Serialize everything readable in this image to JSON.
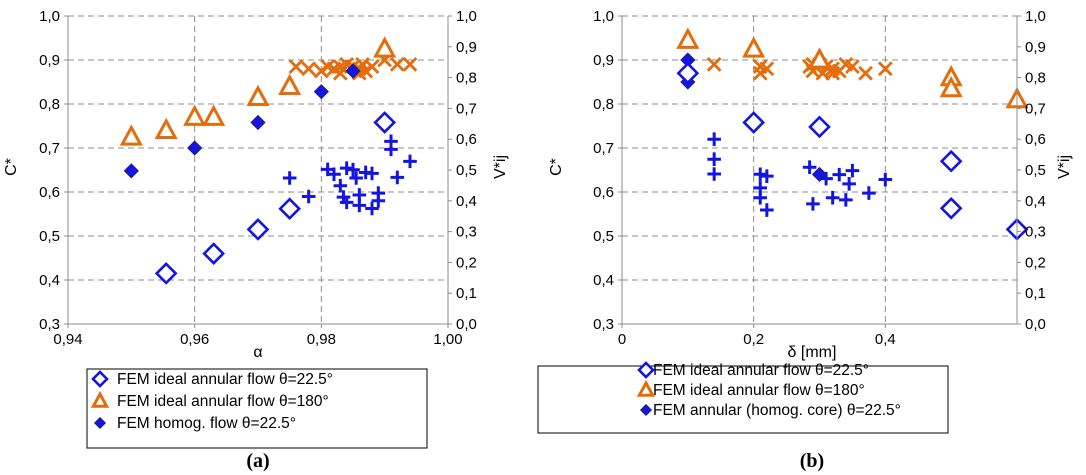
{
  "colors": {
    "blue": "#1515E0",
    "orange": "#E46C0A",
    "grid": "#8c8c8c",
    "axis": "#8c8c8c"
  },
  "chart_data": [
    {
      "panel_label": "(a)",
      "type": "scatter",
      "xlabel": "α",
      "ylabel": "C*",
      "y2label": "V*ij",
      "xlim": [
        0.94,
        1.0
      ],
      "ylim": [
        0.3,
        1.0
      ],
      "y2lim": [
        0.0,
        1.0
      ],
      "x_ticks": [
        0.94,
        0.96,
        0.98,
        1.0
      ],
      "x_tick_labels": [
        "0,94",
        "0,96",
        "0,98",
        "1,00"
      ],
      "y_ticks": [
        0.3,
        0.4,
        0.5,
        0.6,
        0.7,
        0.8,
        0.9,
        1.0
      ],
      "y_tick_labels": [
        "0,3",
        "0,4",
        "0,5",
        "0,6",
        "0,7",
        "0,8",
        "0,9",
        "1,0"
      ],
      "y2_ticks": [
        0.0,
        0.1,
        0.2,
        0.3,
        0.4,
        0.5,
        0.6,
        0.7,
        0.8,
        0.9,
        1.0
      ],
      "y2_tick_labels": [
        "0,0",
        "0,1",
        "0,2",
        "0,3",
        "0,4",
        "0,5",
        "0,6",
        "0,7",
        "0,8",
        "0,9",
        "1,0"
      ],
      "grid": true,
      "legend_position": "bottom",
      "series": [
        {
          "name": "FEM ideal annular flow θ=22.5°",
          "marker": "open-diamond",
          "color": "#1515E0",
          "axis": "left",
          "points": [
            [
              0.9555,
              0.415
            ],
            [
              0.963,
              0.46
            ],
            [
              0.97,
              0.515
            ],
            [
              0.975,
              0.562
            ],
            [
              0.99,
              0.758
            ]
          ]
        },
        {
          "name": "FEM ideal annular flow θ=180°",
          "marker": "open-triangle",
          "color": "#E46C0A",
          "axis": "left",
          "points": [
            [
              0.95,
              0.725
            ],
            [
              0.9555,
              0.74
            ],
            [
              0.96,
              0.77
            ],
            [
              0.963,
              0.77
            ],
            [
              0.97,
              0.815
            ],
            [
              0.975,
              0.84
            ],
            [
              0.99,
              0.925
            ]
          ]
        },
        {
          "name": "FEM homog. flow θ=22.5°",
          "marker": "filled-diamond",
          "color": "#1515E0",
          "axis": "left",
          "points": [
            [
              0.95,
              0.648
            ],
            [
              0.96,
              0.7
            ],
            [
              0.97,
              0.758
            ],
            [
              0.98,
              0.828
            ],
            [
              0.985,
              0.875
            ]
          ]
        },
        {
          "name": "",
          "marker": "x",
          "color": "#E46C0A",
          "axis": "left",
          "points": [
            [
              0.976,
              0.885
            ],
            [
              0.978,
              0.88
            ],
            [
              0.98,
              0.875
            ],
            [
              0.981,
              0.885
            ],
            [
              0.982,
              0.88
            ],
            [
              0.983,
              0.885
            ],
            [
              0.984,
              0.89
            ],
            [
              0.985,
              0.885
            ],
            [
              0.986,
              0.88
            ],
            [
              0.9865,
              0.89
            ],
            [
              0.987,
              0.875
            ],
            [
              0.988,
              0.885
            ],
            [
              0.99,
              0.9
            ],
            [
              0.992,
              0.89
            ],
            [
              0.994,
              0.89
            ],
            [
              0.983,
              0.87
            ],
            [
              0.986,
              0.87
            ]
          ]
        },
        {
          "name": "",
          "marker": "plus",
          "color": "#1515E0",
          "axis": "right",
          "points": [
            [
              0.975,
              0.474
            ],
            [
              0.978,
              0.414
            ],
            [
              0.981,
              0.502
            ],
            [
              0.982,
              0.486
            ],
            [
              0.983,
              0.449
            ],
            [
              0.9835,
              0.412
            ],
            [
              0.984,
              0.395
            ],
            [
              0.984,
              0.506
            ],
            [
              0.985,
              0.501
            ],
            [
              0.9855,
              0.474
            ],
            [
              0.986,
              0.419
            ],
            [
              0.986,
              0.385
            ],
            [
              0.987,
              0.492
            ],
            [
              0.988,
              0.489
            ],
            [
              0.988,
              0.375
            ],
            [
              0.989,
              0.425
            ],
            [
              0.989,
              0.4
            ],
            [
              0.991,
              0.593
            ],
            [
              0.991,
              0.567
            ],
            [
              0.992,
              0.476
            ],
            [
              0.994,
              0.528
            ]
          ]
        }
      ]
    },
    {
      "panel_label": "(b)",
      "type": "scatter",
      "xlabel": "δ [mm]",
      "ylabel": "C*",
      "y2label": "V*ij",
      "xlim": [
        0.0,
        0.6
      ],
      "ylim": [
        0.3,
        1.0
      ],
      "y2lim": [
        0.0,
        1.0
      ],
      "x_ticks": [
        0.0,
        0.2,
        0.4
      ],
      "x_tick_labels": [
        "0",
        "0,2",
        "0,4"
      ],
      "y_ticks": [
        0.3,
        0.4,
        0.5,
        0.6,
        0.7,
        0.8,
        0.9,
        1.0
      ],
      "y_tick_labels": [
        "0,3",
        "0,4",
        "0,5",
        "0,6",
        "0,7",
        "0,8",
        "0,9",
        "1,0"
      ],
      "y2_ticks": [
        0.0,
        0.1,
        0.2,
        0.3,
        0.4,
        0.5,
        0.6,
        0.7,
        0.8,
        0.9,
        1.0
      ],
      "y2_tick_labels": [
        "0,0",
        "0,1",
        "0,2",
        "0,3",
        "0,4",
        "0,5",
        "0,6",
        "0,7",
        "0,8",
        "0,9",
        "1,0"
      ],
      "grid": true,
      "legend_position": "bottom",
      "series": [
        {
          "name": "FEM ideal annular flow θ=22.5°",
          "marker": "open-diamond",
          "color": "#1515E0",
          "axis": "left",
          "points": [
            [
              0.1,
              0.87
            ],
            [
              0.2,
              0.758
            ],
            [
              0.3,
              0.748
            ],
            [
              0.5,
              0.67
            ],
            [
              0.5,
              0.563
            ],
            [
              0.6,
              0.515
            ]
          ]
        },
        {
          "name": "FEM ideal annular flow θ=180°",
          "marker": "open-triangle",
          "color": "#E46C0A",
          "axis": "left",
          "points": [
            [
              0.1,
              0.945
            ],
            [
              0.2,
              0.925
            ],
            [
              0.3,
              0.9
            ],
            [
              0.5,
              0.86
            ],
            [
              0.5,
              0.835
            ],
            [
              0.6,
              0.81
            ]
          ]
        },
        {
          "name": "FEM annular (homog. core) θ=22.5°",
          "marker": "filled-diamond",
          "color": "#1515E0",
          "axis": "left",
          "points": [
            [
              0.1,
              0.9
            ],
            [
              0.1,
              0.85
            ],
            [
              0.3,
              0.755
            ],
            [
              0.3,
              0.64
            ],
            [
              0.5,
              0.675
            ]
          ]
        },
        {
          "name": "",
          "marker": "x",
          "color": "#E46C0A",
          "axis": "left",
          "points": [
            [
              0.14,
              0.89
            ],
            [
              0.21,
              0.885
            ],
            [
              0.21,
              0.87
            ],
            [
              0.22,
              0.88
            ],
            [
              0.285,
              0.885
            ],
            [
              0.29,
              0.875
            ],
            [
              0.3,
              0.89
            ],
            [
              0.305,
              0.87
            ],
            [
              0.31,
              0.885
            ],
            [
              0.32,
              0.88
            ],
            [
              0.33,
              0.875
            ],
            [
              0.34,
              0.89
            ],
            [
              0.35,
              0.885
            ],
            [
              0.37,
              0.87
            ],
            [
              0.4,
              0.88
            ],
            [
              0.29,
              0.89
            ],
            [
              0.32,
              0.87
            ]
          ]
        },
        {
          "name": "",
          "marker": "plus",
          "color": "#1515E0",
          "axis": "right",
          "points": [
            [
              0.14,
              0.6
            ],
            [
              0.14,
              0.535
            ],
            [
              0.14,
              0.487
            ],
            [
              0.21,
              0.486
            ],
            [
              0.21,
              0.442
            ],
            [
              0.21,
              0.41
            ],
            [
              0.22,
              0.48
            ],
            [
              0.22,
              0.37
            ],
            [
              0.285,
              0.509
            ],
            [
              0.29,
              0.39
            ],
            [
              0.31,
              0.472
            ],
            [
              0.32,
              0.41
            ],
            [
              0.33,
              0.485
            ],
            [
              0.34,
              0.403
            ],
            [
              0.345,
              0.455
            ],
            [
              0.35,
              0.498
            ],
            [
              0.375,
              0.425
            ],
            [
              0.4,
              0.469
            ]
          ]
        }
      ]
    }
  ],
  "legends": [
    {
      "items": [
        {
          "marker": "open-diamond",
          "color": "#1515E0",
          "label": "FEM ideal annular flow θ=22.5°"
        },
        {
          "marker": "open-triangle",
          "color": "#E46C0A",
          "label": "FEM ideal annular flow θ=180°"
        },
        {
          "marker": "filled-diamond",
          "color": "#1515E0",
          "label": "FEM homog. flow θ=22.5°"
        }
      ]
    },
    {
      "items": [
        {
          "marker": "open-diamond",
          "color": "#1515E0",
          "label": "FEM ideal annular flow θ=22.5°"
        },
        {
          "marker": "open-triangle",
          "color": "#E46C0A",
          "label": "FEM ideal annular flow θ=180°"
        },
        {
          "marker": "filled-diamond",
          "color": "#1515E0",
          "label": "FEM annular (homog. core) θ=22.5°"
        }
      ]
    }
  ]
}
